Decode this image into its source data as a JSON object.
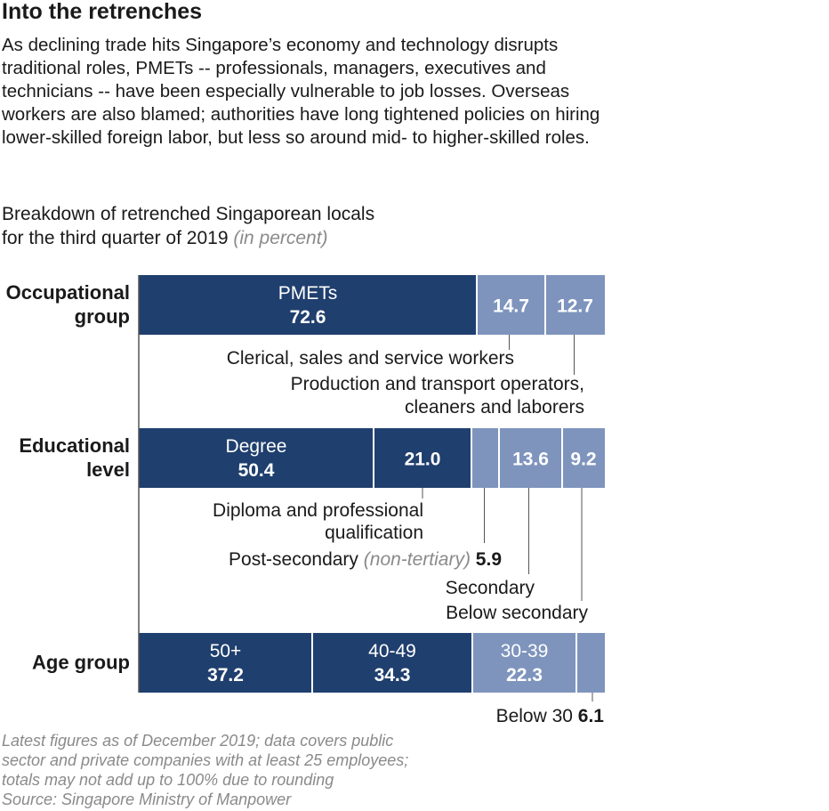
{
  "headline": "Into the retrenches",
  "intro": "As declining trade hits Singapore’s economy and technology disrupts traditional roles, PMETs -- professionals, managers, executives and technicians -- have been especially vulnerable to job losses. Overseas workers are also blamed; authorities have long tightened policies on hiring lower-skilled foreign labor, but less so around mid- to higher-skilled roles.",
  "subtitle": {
    "line1": "Breakdown of retrenched Singaporean locals",
    "line2": "for the third quarter of 2019",
    "unit": "(in percent)"
  },
  "colors": {
    "dark": "#1f3f6e",
    "light": "#7e94bd",
    "divider": "#ffffff",
    "axis": "#555555"
  },
  "chart_data": {
    "type": "bar",
    "orientation": "horizontal",
    "stacked": true,
    "unit": "percent",
    "categories": [
      "Occupational group",
      "Educational level",
      "Age group"
    ],
    "bars": [
      {
        "category": "Occupational group",
        "label_lines": [
          "Occupational",
          "group"
        ],
        "segments": [
          {
            "name": "PMETs",
            "value": 72.6,
            "color": "dark",
            "label": "inside-named"
          },
          {
            "name": "Clerical, sales and service workers",
            "value": 14.7,
            "color": "light",
            "label": "inside-value",
            "callout": true
          },
          {
            "name": "Production and transport operators, cleaners and laborers",
            "value": 12.7,
            "color": "light",
            "label": "inside-value",
            "callout": true
          }
        ]
      },
      {
        "category": "Educational level",
        "label_lines": [
          "Educational",
          "level"
        ],
        "segments": [
          {
            "name": "Degree",
            "value": 50.4,
            "color": "dark",
            "label": "inside-named"
          },
          {
            "name": "Diploma and professional qualification",
            "value": 21.0,
            "color": "dark",
            "label": "inside-value",
            "callout": true
          },
          {
            "name": "Post-secondary",
            "name_note": "(non-tertiary)",
            "value": 5.9,
            "color": "light",
            "label": "callout-value"
          },
          {
            "name": "Secondary",
            "value": 13.6,
            "color": "light",
            "label": "inside-value",
            "callout": true
          },
          {
            "name": "Below secondary",
            "value": 9.2,
            "color": "light",
            "label": "inside-value",
            "callout": true
          }
        ]
      },
      {
        "category": "Age group",
        "label_lines": [
          "Age group"
        ],
        "segments": [
          {
            "name": "50+",
            "value": 37.2,
            "color": "dark",
            "label": "inside-named"
          },
          {
            "name": "40-49",
            "value": 34.3,
            "color": "dark",
            "label": "inside-named"
          },
          {
            "name": "30-39",
            "value": 22.3,
            "color": "light",
            "label": "inside-named"
          },
          {
            "name": "Below 30",
            "value": 6.1,
            "color": "light",
            "label": "callout-value"
          }
        ]
      }
    ]
  },
  "footnote": [
    "Latest figures as of December 2019; data covers public",
    "sector and private companies with at least 25 employees;",
    "totals may not add up to 100% due to rounding",
    "Source: Singapore Ministry of Manpower"
  ]
}
